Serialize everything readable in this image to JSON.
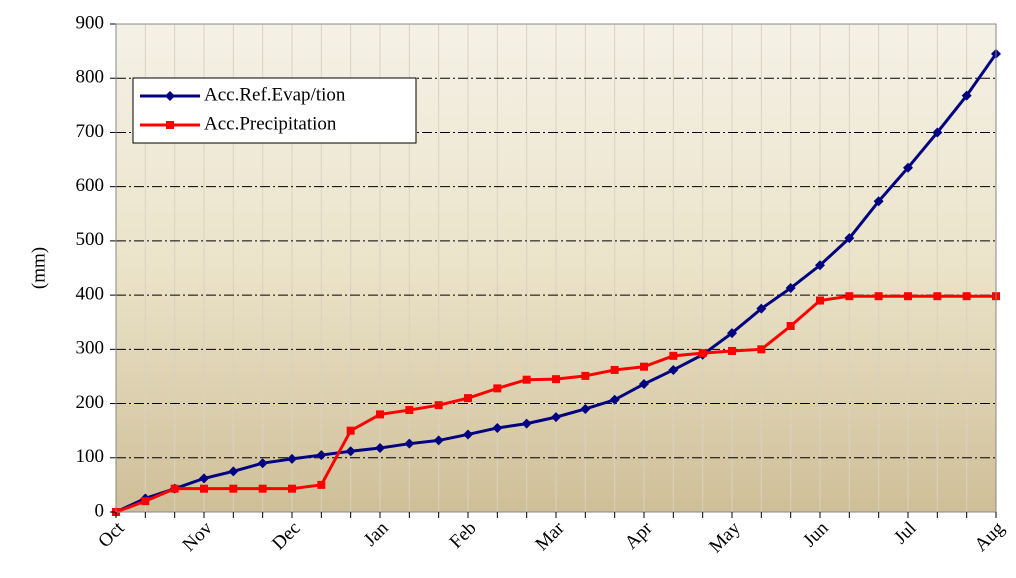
{
  "chart_data": {
    "type": "line",
    "ylabel": "(mm)",
    "categories": [
      "Oct",
      null,
      null,
      "Nov",
      null,
      null,
      "Dec",
      null,
      null,
      "Jan",
      null,
      null,
      "Feb",
      null,
      null,
      "Mar",
      null,
      null,
      "Apr",
      null,
      null,
      "May",
      null,
      null,
      "Jun",
      null,
      null,
      "Jul",
      null,
      null,
      "Aug"
    ],
    "series": [
      {
        "name": "Acc.Ref.Evap/tion",
        "color": "#000080",
        "marker": "diamond",
        "values": [
          0,
          25,
          43,
          62,
          75,
          90,
          98,
          105,
          112,
          118,
          126,
          132,
          143,
          155,
          163,
          175,
          190,
          207,
          236,
          262,
          290,
          330,
          375,
          413,
          455,
          505,
          573,
          635,
          700,
          768,
          845
        ]
      },
      {
        "name": "Acc.Precipitation",
        "color": "#ff0000",
        "marker": "square",
        "values": [
          0,
          20,
          43,
          43,
          43,
          43,
          43,
          50,
          150,
          180,
          188,
          197,
          210,
          228,
          244,
          245,
          251,
          262,
          268,
          288,
          293,
          297,
          300,
          343,
          390,
          398,
          398,
          398,
          398,
          398,
          398
        ]
      }
    ],
    "ylim": [
      0,
      900
    ],
    "yticks": [
      0,
      100,
      200,
      300,
      400,
      500,
      600,
      700,
      800,
      900
    ],
    "grid": true,
    "legend": "upper left"
  }
}
